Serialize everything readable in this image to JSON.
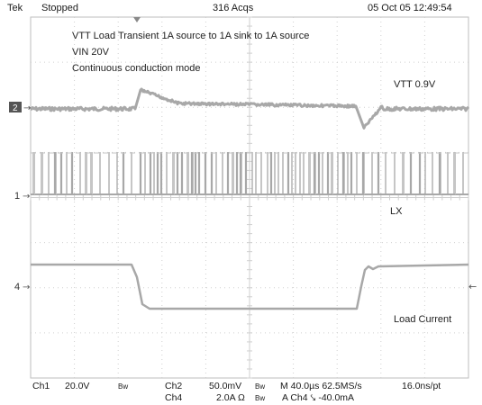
{
  "header": {
    "brand": "Tek",
    "state": "Stopped",
    "acqs": "316 Acqs",
    "datetime": "05 Oct 05 12:49:54"
  },
  "annotations": {
    "title": "VTT Load Transient  1A source to 1A sink to 1A source",
    "vin": "VIN 20V",
    "mode": "Continuous conduction mode",
    "vtt": "VTT  0.9V",
    "lx": "LX",
    "load": "Load Current"
  },
  "channels": {
    "ch2_marker": "2",
    "ch1_marker": "1",
    "ch4_marker": "4"
  },
  "footer": {
    "ch1_label": "Ch1",
    "ch1_scale": "20.0V",
    "bw1": "Bw",
    "ch2_label": "Ch2",
    "ch2_scale": "50.0mV",
    "bw2": "Bw",
    "ch4_label": "Ch4",
    "ch4_scale": "2.0A",
    "ohm": "Ω",
    "bw4": "Bw",
    "timebase": "M 40.0µs 62.5MS/s",
    "resolution": "16.0ns/pt",
    "trigger": "A  Ch4  ⤥  -40.0mA"
  },
  "colors": {
    "grid": "#cfcfcf",
    "trace": "#a8a8a8",
    "trace_dark": "#8a8a8a",
    "marker_bg": "#555555",
    "marker_fg": "#ffffff"
  }
}
